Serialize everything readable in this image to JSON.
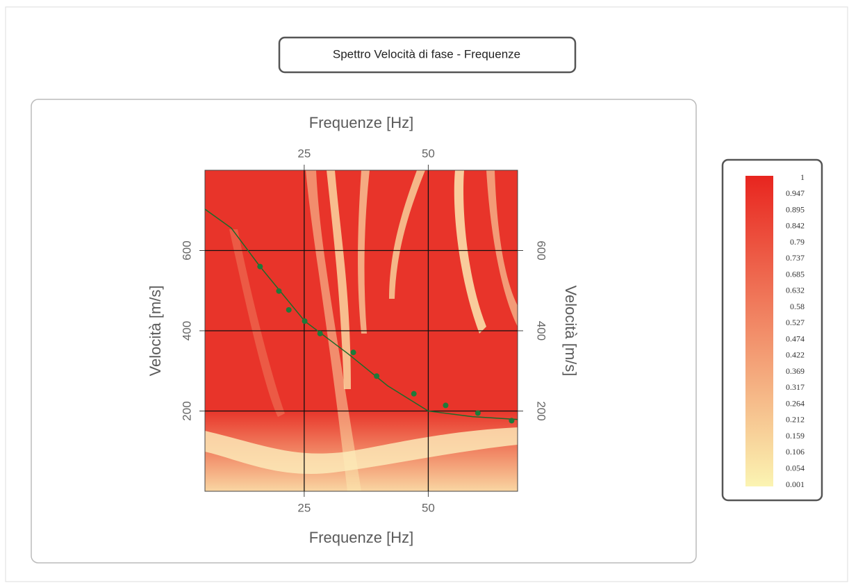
{
  "chart_data": {
    "type": "scatter",
    "title": "Spettro Velocità di fase - Frequenze",
    "xlabel": "Frequenze [Hz]",
    "ylabel": "Velocità [m/s]",
    "xlim": [
      5,
      68
    ],
    "ylim": [
      0,
      800
    ],
    "xticks": [
      25,
      50
    ],
    "yticks": [
      200,
      400,
      600
    ],
    "grid": true,
    "points": {
      "color": "#1e7a3a",
      "x": [
        16.1,
        19.9,
        21.9,
        25.1,
        28.2,
        34.9,
        39.6,
        47.1,
        53.5,
        60,
        66.8
      ],
      "y": [
        560,
        499,
        452,
        424,
        393,
        346,
        287,
        243,
        214,
        195,
        176
      ]
    },
    "curve": {
      "color": "#1e6a2a",
      "x": [
        5,
        10.3,
        16.1,
        25.1,
        33.8,
        41.8,
        50,
        58.9,
        68
      ],
      "y": [
        703,
        656,
        560,
        424,
        343,
        263,
        200,
        186,
        179
      ]
    },
    "colorbar": {
      "ticks": [
        1,
        0.947,
        0.895,
        0.842,
        0.79,
        0.737,
        0.685,
        0.632,
        0.58,
        0.527,
        0.474,
        0.422,
        0.369,
        0.317,
        0.264,
        0.212,
        0.159,
        0.106,
        0.054,
        0.001
      ],
      "colors": [
        "#fbf4b2",
        "#e8251f"
      ]
    }
  }
}
